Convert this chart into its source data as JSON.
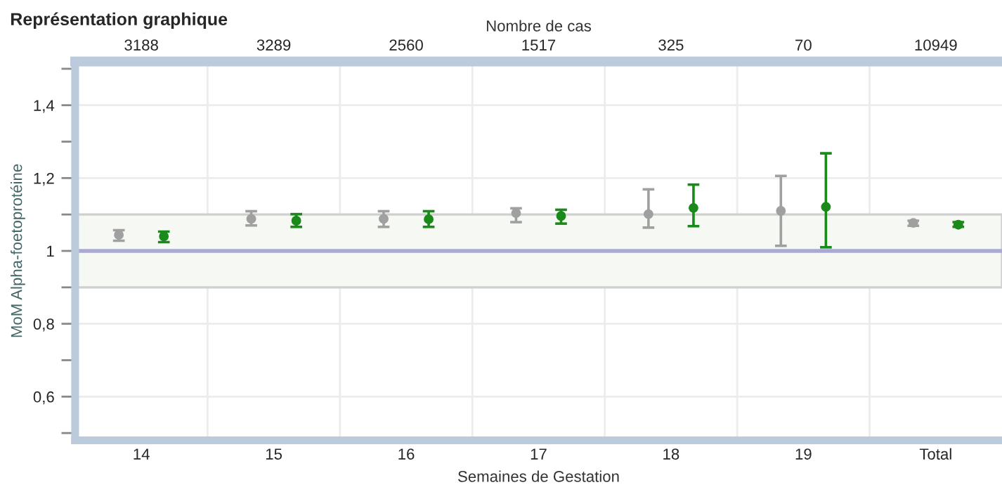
{
  "chart_data": {
    "type": "scatter",
    "title": "Représentation graphique",
    "xlabel": "Semaines de Gestation",
    "ylabel": "MoM Alpha-foetoprotéine",
    "x2label": "Nombre de cas",
    "categories": [
      "14",
      "15",
      "16",
      "17",
      "18",
      "19",
      "Total"
    ],
    "series": [
      {
        "color": "#a0a0a0",
        "values": [
          1.044,
          1.088,
          1.088,
          1.104,
          1.101,
          1.11,
          1.077
        ],
        "errors": [
          [
            1.028,
            1.057
          ],
          [
            1.07,
            1.109
          ],
          [
            1.066,
            1.109
          ],
          [
            1.079,
            1.117
          ],
          [
            1.064,
            1.169
          ],
          [
            1.014,
            1.206
          ],
          [
            1.069,
            1.083
          ]
        ]
      },
      {
        "color": "#1a8a1a",
        "values": [
          1.04,
          1.083,
          1.087,
          1.096,
          1.118,
          1.121,
          1.072
        ],
        "errors": [
          [
            1.024,
            1.053
          ],
          [
            1.066,
            1.101
          ],
          [
            1.066,
            1.109
          ],
          [
            1.075,
            1.113
          ],
          [
            1.068,
            1.182
          ],
          [
            1.01,
            1.268
          ],
          [
            1.066,
            1.079
          ]
        ]
      }
    ],
    "ylim": [
      0.48,
      1.52
    ],
    "yticks": [
      {
        "value": 0.5,
        "label": null
      },
      {
        "value": 0.6,
        "label": "0,6"
      },
      {
        "value": 0.7,
        "label": null
      },
      {
        "value": 0.8,
        "label": "0,8"
      },
      {
        "value": 0.9,
        "label": null
      },
      1,
      {
        "value": 1.1,
        "label": null
      },
      {
        "value": 1.2,
        "label": "1,2"
      },
      {
        "value": 1.3,
        "label": null
      },
      {
        "value": 1.4,
        "label": "1,4"
      },
      {
        "value": 1.5,
        "label": null
      }
    ],
    "ref_lines": [
      {
        "axis": "y",
        "value": 1,
        "color": "#a9a9d4"
      }
    ],
    "bands": [
      {
        "axis": "y",
        "from": 0.9,
        "to": 1.1,
        "color": "#f5f8f3"
      }
    ],
    "annotations": [
      "3188",
      "3289",
      "2560",
      "1517",
      "325",
      "70",
      "10949"
    ],
    "grid": true,
    "marker": "circle",
    "legend": false
  }
}
